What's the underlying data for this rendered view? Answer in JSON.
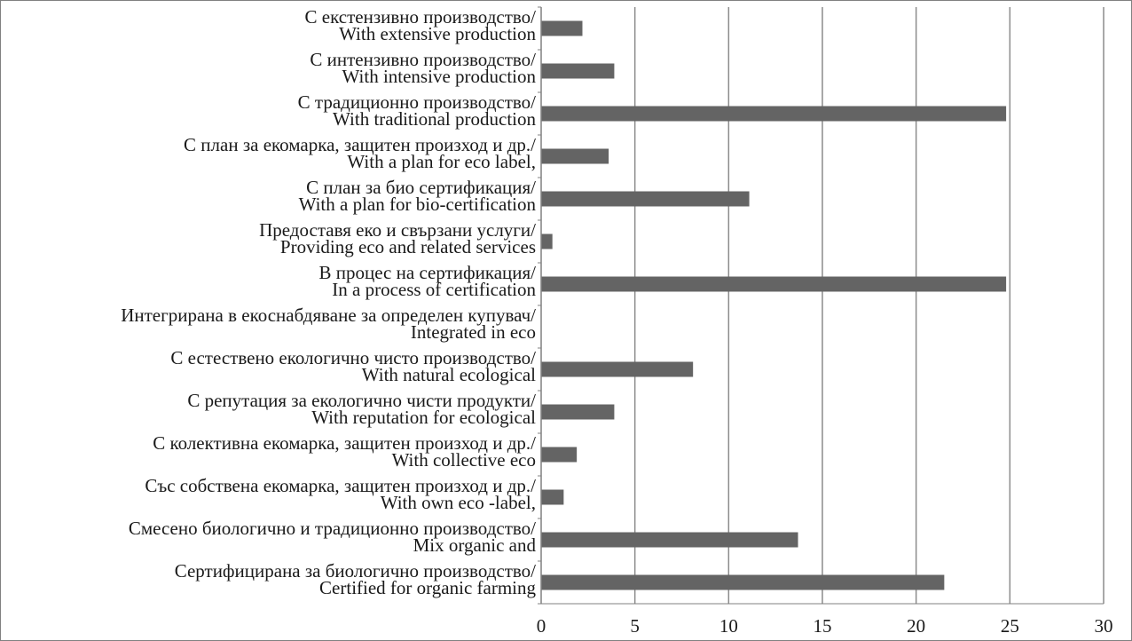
{
  "chart_data": {
    "type": "bar",
    "orientation": "horizontal",
    "title": "",
    "xlabel": "",
    "ylabel": "",
    "xlim": [
      0,
      30
    ],
    "x_ticks": [
      "0",
      "5",
      "10",
      "15",
      "20",
      "25",
      "30"
    ],
    "grid": "vertical gridlines at each major tick",
    "legend": "none",
    "bar_color": "#646464",
    "grid_color": "#8c8c8c",
    "categories": [
      {
        "bg": "С екстензивно производство/",
        "en": "With extensive production",
        "value": 2.2
      },
      {
        "bg": "С интензивно производство/",
        "en": "With intensive production",
        "value": 3.9
      },
      {
        "bg": "С традиционно производство/",
        "en": "With traditional production",
        "value": 24.8
      },
      {
        "bg": "С план за екомарка, защитен произход и др./",
        "en": "With a plan for eco label,",
        "value": 3.6
      },
      {
        "bg": "С план за био сертификация/",
        "en": "With a plan for bio-certification",
        "value": 11.1
      },
      {
        "bg": "Предоставя еко и свързани услуги/",
        "en": "Providing eco and related services",
        "value": 0.6
      },
      {
        "bg": "В процес на сертификация/",
        "en": "In a process of certification",
        "value": 24.8
      },
      {
        "bg": "Интегрирана в екоснабдяване за определен купувач/",
        "en": "Integrated in eco",
        "value": 0
      },
      {
        "bg": "С естествено екологично чисто производство/",
        "en": "With natural ecological",
        "value": 8.1
      },
      {
        "bg": "С репутация за екологично чисти продукти/",
        "en": "With reputation for ecological",
        "value": 3.9
      },
      {
        "bg": "С колективна екомарка, защитен произход и др./",
        "en": "With collective eco",
        "value": 1.9
      },
      {
        "bg": "Със собствена екомарка, защитен произход и др./",
        "en": "With own eco -label,",
        "value": 1.2
      },
      {
        "bg": "Смесено биологично и традиционно производство/",
        "en": "Mix organic and",
        "value": 13.7
      },
      {
        "bg": "Сертифицирана за биологично производство/",
        "en": "Certified for organic farming",
        "value": 21.5
      }
    ]
  }
}
